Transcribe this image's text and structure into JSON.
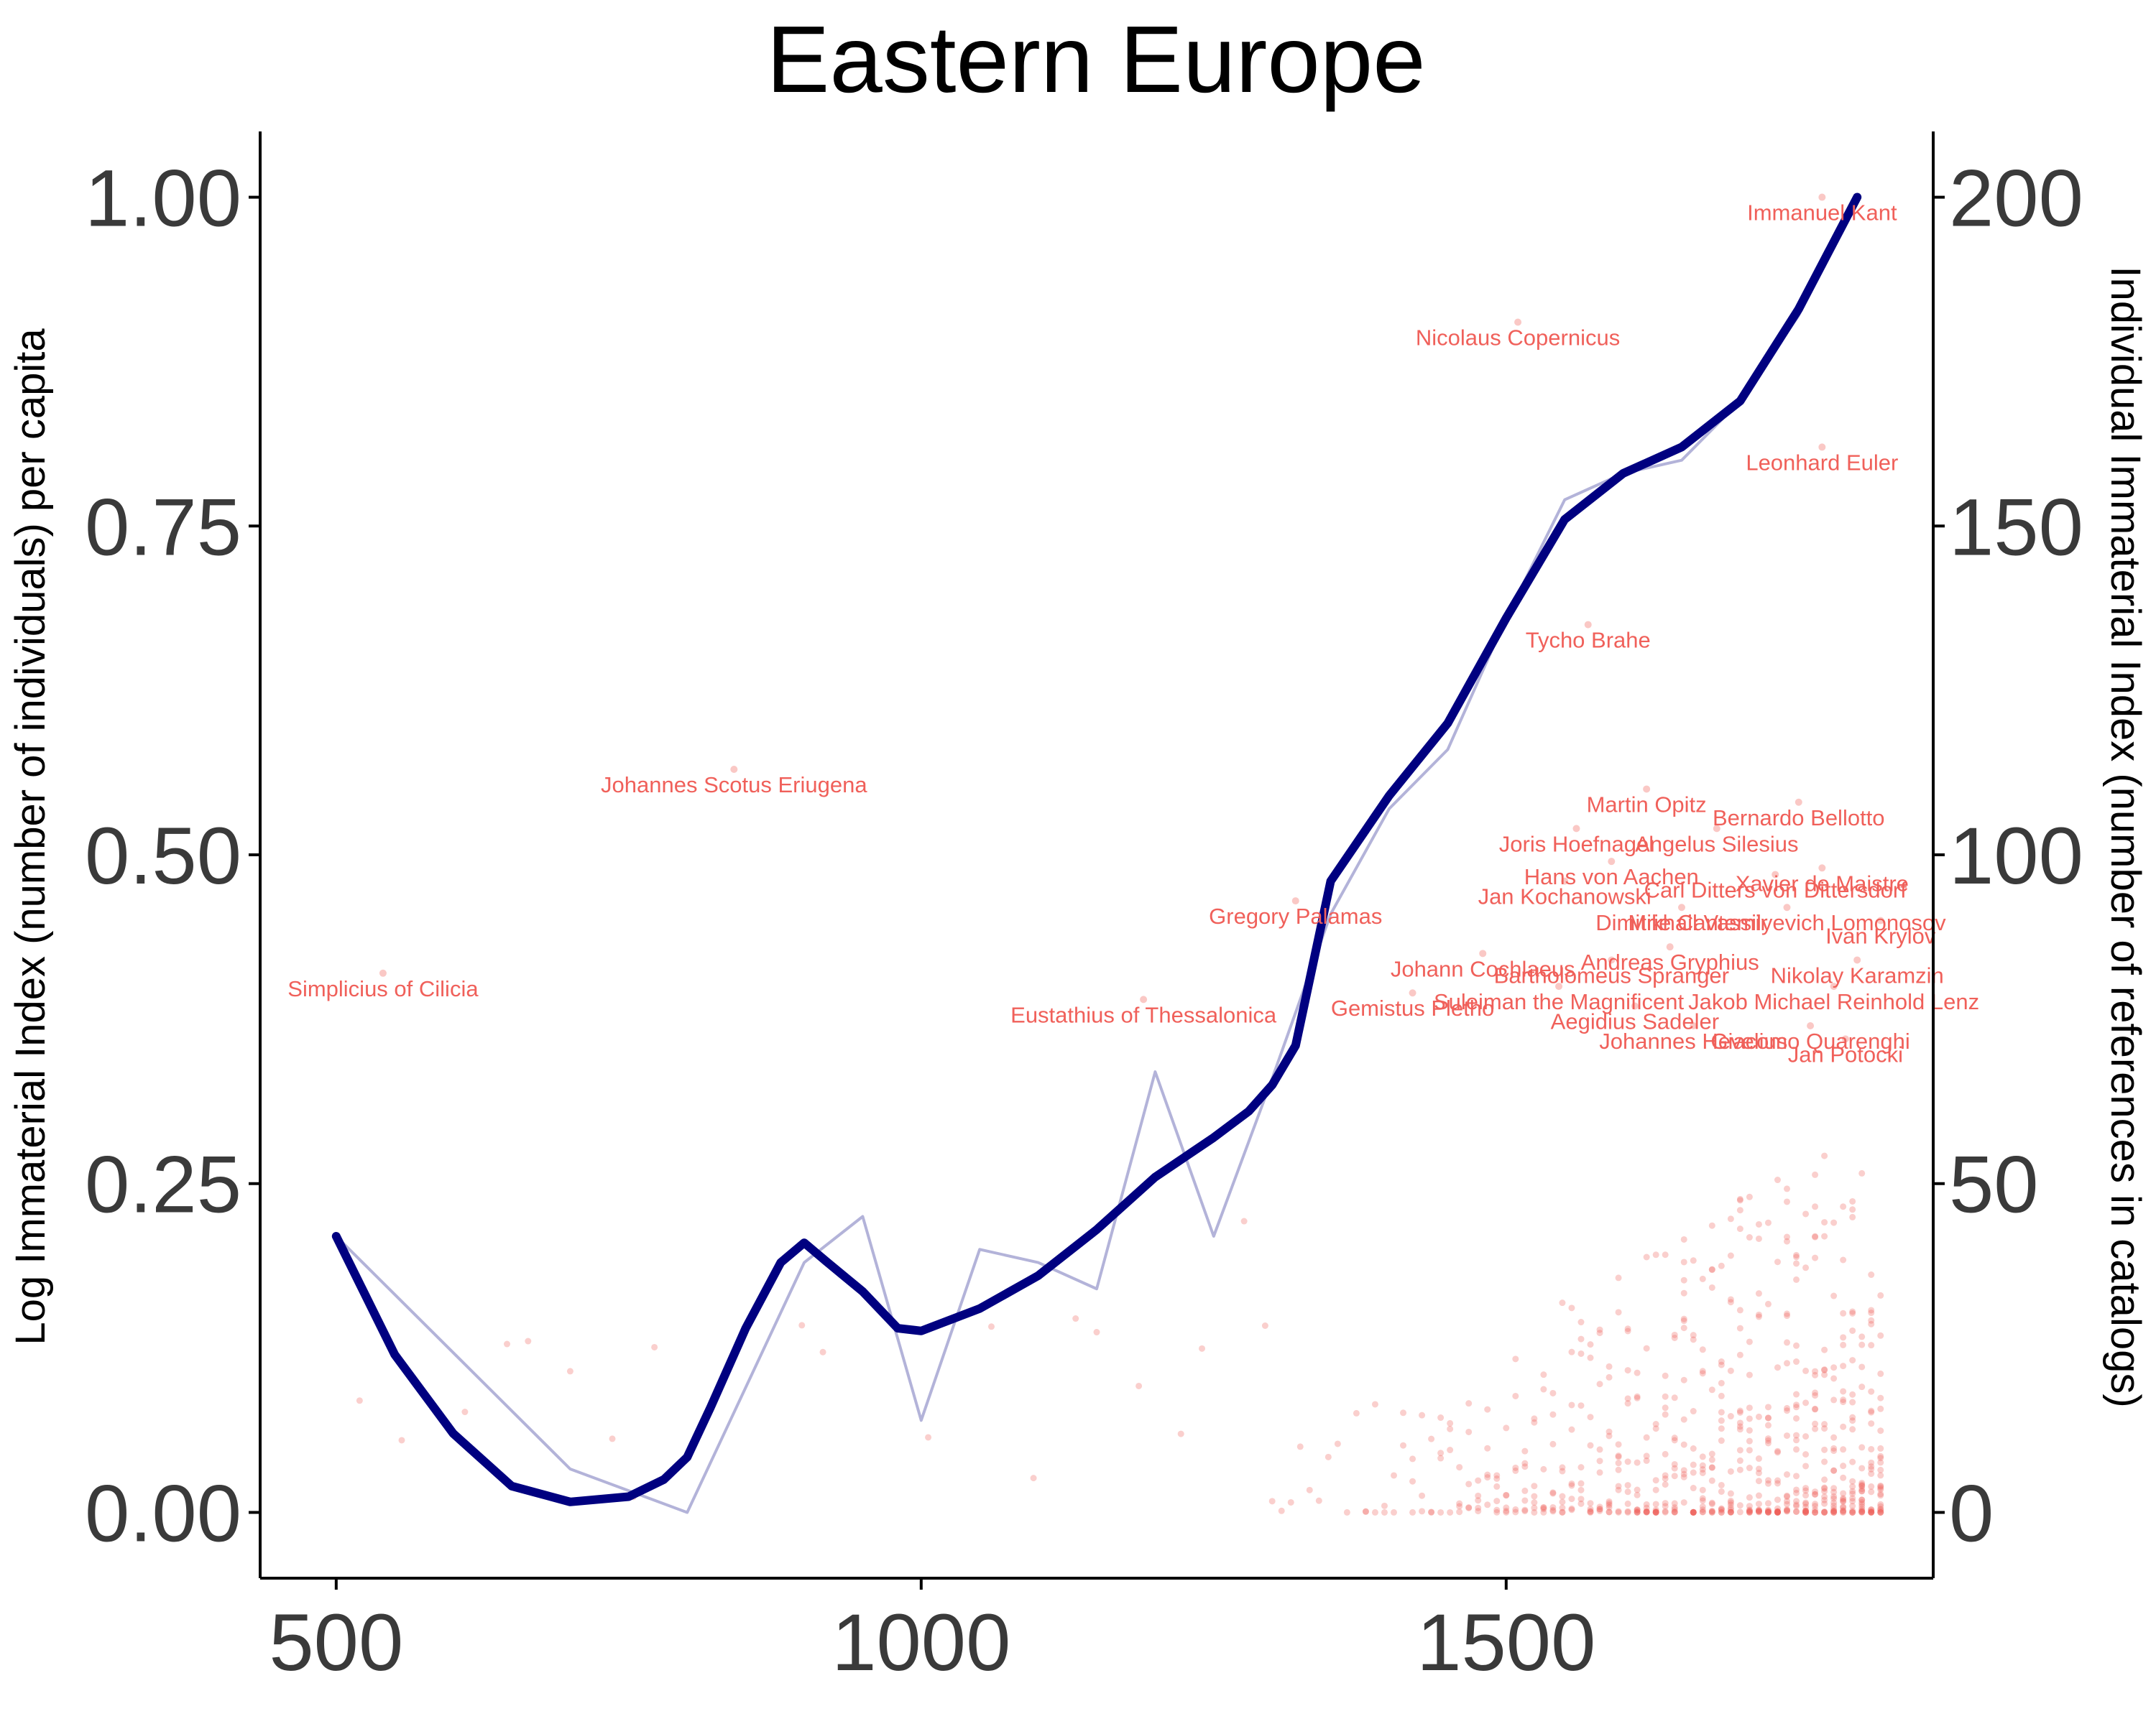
{
  "chart_data": {
    "type": "line",
    "title": "Eastern Europe",
    "xlabel": "",
    "ylabel": "Log Immaterial Index (number of individuals) per capita",
    "y2label": "Individual Immaterial Index (number of references in catalogs)",
    "xlim": [
      435,
      1865
    ],
    "ylim": [
      -0.05,
      1.05
    ],
    "y2lim": [
      -10,
      210
    ],
    "xticks": [
      "500",
      "1000",
      "1500"
    ],
    "xtick_values": [
      500,
      1000,
      1500
    ],
    "yticks": [
      "0.00",
      "0.25",
      "0.50",
      "0.75",
      "1.00"
    ],
    "ytick_values": [
      0,
      0.25,
      0.5,
      0.75,
      1.0
    ],
    "y2ticks": [
      "0",
      "50",
      "100",
      "150",
      "200"
    ],
    "y2tick_values": [
      0,
      50,
      100,
      150,
      200
    ],
    "grid": false,
    "colors": {
      "smooth": "#000080",
      "raw": "#b3b3d9",
      "points": "#f0605a",
      "labels": "#f0605a",
      "axis": "#000000"
    },
    "series": [
      {
        "role": "raw",
        "x": [
          500,
          700,
          800,
          900,
          950,
          1000,
          1050,
          1100,
          1150,
          1200,
          1250,
          1300,
          1350,
          1400,
          1450,
          1500,
          1550,
          1600,
          1650,
          1700,
          1750,
          1800
        ],
        "y": [
          0.21,
          0.033,
          0.0,
          0.19,
          0.225,
          0.07,
          0.2,
          0.19,
          0.17,
          0.335,
          0.21,
          0.33,
          0.455,
          0.535,
          0.58,
          0.68,
          0.77,
          0.79,
          0.8,
          0.845,
          0.91,
          1.0
        ]
      },
      {
        "role": "smooth",
        "x": [
          500,
          550,
          600,
          650,
          700,
          750,
          780,
          800,
          820,
          850,
          880,
          900,
          920,
          950,
          980,
          1000,
          1050,
          1100,
          1150,
          1200,
          1250,
          1280,
          1300,
          1320,
          1350,
          1400,
          1450,
          1500,
          1550,
          1600,
          1650,
          1700,
          1750,
          1800
        ],
        "y": [
          0.21,
          0.12,
          0.06,
          0.02,
          0.008,
          0.012,
          0.025,
          0.042,
          0.08,
          0.14,
          0.19,
          0.205,
          0.19,
          0.168,
          0.14,
          0.138,
          0.155,
          0.18,
          0.215,
          0.255,
          0.285,
          0.305,
          0.325,
          0.355,
          0.48,
          0.545,
          0.6,
          0.68,
          0.755,
          0.79,
          0.81,
          0.845,
          0.915,
          1.0
        ]
      }
    ],
    "labeled_points": [
      {
        "name": "Immanuel Kant",
        "x": 1770,
        "y2": 200
      },
      {
        "name": "Nicolaus Copernicus",
        "x": 1510,
        "y2": 181
      },
      {
        "name": "Leonhard Euler",
        "x": 1770,
        "y2": 162
      },
      {
        "name": "Tycho Brahe",
        "x": 1570,
        "y2": 135
      },
      {
        "name": "Johannes Scotus Eriugena",
        "x": 840,
        "y2": 113
      },
      {
        "name": "Martin Opitz",
        "x": 1620,
        "y2": 110
      },
      {
        "name": "Bernardo Bellotto",
        "x": 1750,
        "y2": 108
      },
      {
        "name": "Joris Hoefnagel",
        "x": 1560,
        "y2": 104
      },
      {
        "name": "Angelus Silesius",
        "x": 1680,
        "y2": 104
      },
      {
        "name": "Hans von Aachen",
        "x": 1590,
        "y2": 99
      },
      {
        "name": "Xavier de Maistre",
        "x": 1770,
        "y2": 98
      },
      {
        "name": "Carl Ditters von Dittersdorf",
        "x": 1730,
        "y2": 97
      },
      {
        "name": "Jan Kochanowski",
        "x": 1550,
        "y2": 96
      },
      {
        "name": "Gregory Palamas",
        "x": 1320,
        "y2": 93
      },
      {
        "name": "Dimitrie Cantemir",
        "x": 1650,
        "y2": 92
      },
      {
        "name": "Mikhail Vassilyevich Lomonosov",
        "x": 1740,
        "y2": 92
      },
      {
        "name": "Ivan Krylov",
        "x": 1820,
        "y2": 90
      },
      {
        "name": "Andreas Gryphius",
        "x": 1640,
        "y2": 86
      },
      {
        "name": "Johann Cochlaeus",
        "x": 1480,
        "y2": 85
      },
      {
        "name": "Bartholomeus Spranger",
        "x": 1590,
        "y2": 84
      },
      {
        "name": "Nikolay Karamzin",
        "x": 1800,
        "y2": 84
      },
      {
        "name": "Simplicius of Cilicia",
        "x": 540,
        "y2": 82
      },
      {
        "name": "Gemistus Pletho",
        "x": 1420,
        "y2": 79
      },
      {
        "name": "Jakob Michael Reinhold Lenz",
        "x": 1780,
        "y2": 80
      },
      {
        "name": "Eustathius of Thessalonica",
        "x": 1190,
        "y2": 78
      },
      {
        "name": "Suleiman the Magnificent",
        "x": 1545,
        "y2": 80
      },
      {
        "name": "Aegidius Sadeler",
        "x": 1610,
        "y2": 77
      },
      {
        "name": "Jan Potocki",
        "x": 1790,
        "y2": 72
      },
      {
        "name": "Johannes Hevelius",
        "x": 1660,
        "y2": 74
      },
      {
        "name": "Giacomo Quarenghi",
        "x": 1760,
        "y2": 74
      }
    ]
  }
}
